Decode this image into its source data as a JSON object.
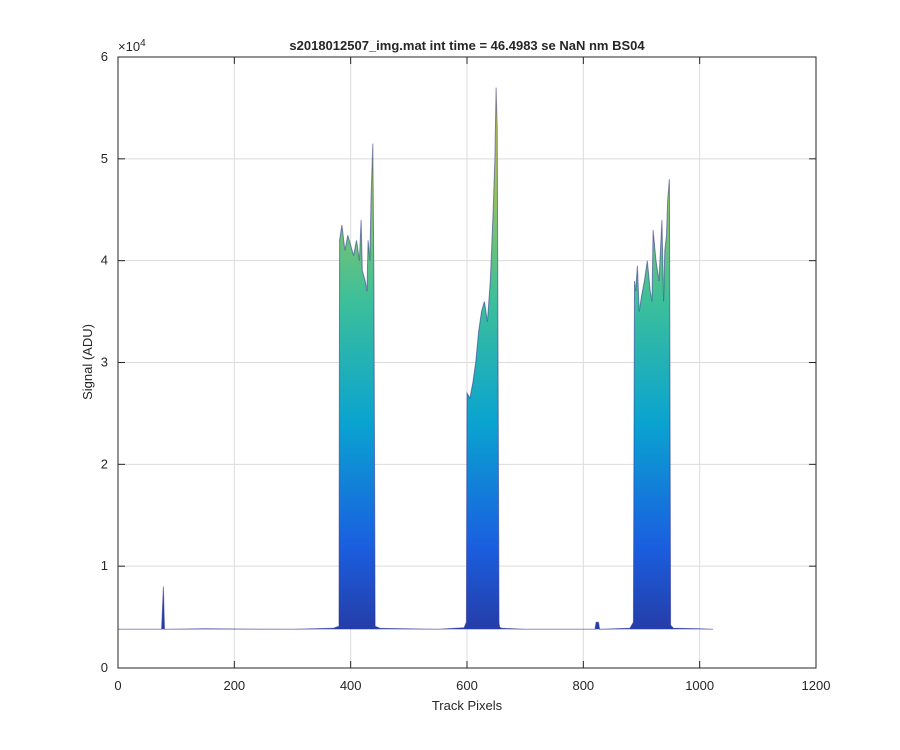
{
  "chart_data": {
    "type": "area",
    "title": "s2018012507_img.mat int time = 46.4983 se  NaN nm BS04",
    "xlabel": "Track Pixels",
    "ylabel": "Signal (ADU)",
    "xlim": [
      0,
      1200
    ],
    "ylim": [
      0,
      60000
    ],
    "x_ticks": [
      "0",
      "200",
      "400",
      "600",
      "800",
      "1000",
      "1200"
    ],
    "y_ticks": [
      "0",
      "1",
      "2",
      "3",
      "4",
      "5",
      "6"
    ],
    "y_exponent_label": "×10",
    "y_exponent_power": "4",
    "grid": true,
    "colormap": [
      "#2b2d8f",
      "#1a5fe0",
      "#0aa3d0",
      "#3cbf9a",
      "#9ec45a",
      "#f5d535"
    ],
    "baseline": 3800,
    "series": [
      {
        "x": [
          0,
          75,
          78,
          80,
          84,
          150,
          300,
          370,
          380,
          381,
          385,
          390,
          395,
          400,
          405,
          410,
          415,
          418,
          420,
          425,
          428,
          430,
          433,
          435,
          438,
          440,
          442,
          450,
          550,
          595,
          599,
          600,
          605,
          610,
          615,
          620,
          625,
          630,
          635,
          640,
          643,
          645,
          648,
          650,
          652,
          655,
          656,
          660,
          700,
          800,
          820,
          822,
          826,
          828,
          880,
          886,
          888,
          890,
          893,
          896,
          900,
          905,
          910,
          915,
          918,
          920,
          925,
          930,
          935,
          938,
          940,
          943,
          945,
          948,
          950,
          955,
          1000,
          1023
        ],
        "y": [
          3800,
          3800,
          8000,
          3800,
          3800,
          3850,
          3800,
          3900,
          4100,
          42000,
          43500,
          41000,
          42500,
          41500,
          40500,
          42000,
          40000,
          44000,
          39000,
          38000,
          37000,
          42000,
          40000,
          46000,
          51500,
          38000,
          4100,
          3900,
          3800,
          3950,
          4500,
          27000,
          26500,
          28000,
          30000,
          33000,
          35000,
          36000,
          34000,
          38000,
          42000,
          45000,
          50000,
          57000,
          53000,
          4500,
          4000,
          3900,
          3800,
          3800,
          3800,
          4500,
          4500,
          3800,
          3900,
          4500,
          38000,
          37000,
          39500,
          35000,
          36500,
          38000,
          40000,
          37000,
          36000,
          43000,
          40000,
          38000,
          44000,
          36000,
          41000,
          42500,
          46000,
          48000,
          4200,
          3900,
          3850,
          3800
        ]
      }
    ]
  }
}
